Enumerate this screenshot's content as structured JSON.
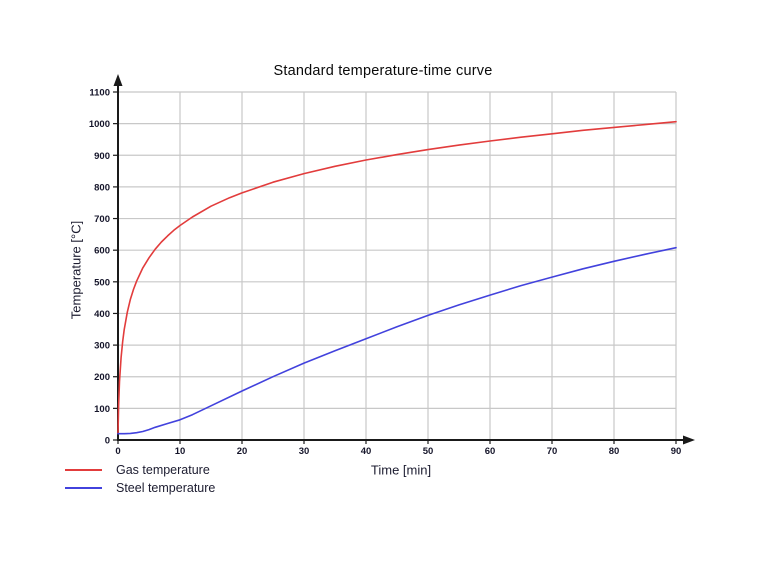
{
  "page": {
    "background": "#ffffff"
  },
  "colors": {
    "grid": "#c8c8c8",
    "axis": "#1a1a1a",
    "tick_text": "#15152a",
    "gas_line": "#e23c3c",
    "steel_line": "#4242dd"
  },
  "chart_data": {
    "type": "line",
    "title": "Standard temperature-time curve",
    "xlabel": "Time [min]",
    "ylabel": "Temperature [°C]",
    "xlim": [
      0,
      90
    ],
    "ylim": [
      0,
      1100
    ],
    "x_ticks": [
      0,
      10,
      20,
      30,
      40,
      50,
      60,
      70,
      80,
      90
    ],
    "y_ticks": [
      0,
      100,
      200,
      300,
      400,
      500,
      600,
      700,
      800,
      900,
      1000,
      1100
    ],
    "grid": true,
    "legend_position": "bottom-left",
    "series": [
      {
        "name": "Gas temperature",
        "color": "#e23c3c",
        "points": [
          [
            0,
            20
          ],
          [
            0.1,
            108
          ],
          [
            0.25,
            185
          ],
          [
            0.5,
            261
          ],
          [
            0.75,
            312
          ],
          [
            1,
            349
          ],
          [
            1.5,
            404
          ],
          [
            2,
            445
          ],
          [
            2.5,
            476
          ],
          [
            3,
            502
          ],
          [
            4,
            544
          ],
          [
            5,
            576
          ],
          [
            6,
            603
          ],
          [
            7,
            626
          ],
          [
            8,
            645
          ],
          [
            9,
            663
          ],
          [
            10,
            678
          ],
          [
            12,
            705
          ],
          [
            15,
            739
          ],
          [
            18,
            766
          ],
          [
            20,
            781
          ],
          [
            25,
            815
          ],
          [
            30,
            842
          ],
          [
            35,
            865
          ],
          [
            40,
            885
          ],
          [
            45,
            902
          ],
          [
            50,
            918
          ],
          [
            55,
            932
          ],
          [
            60,
            945
          ],
          [
            65,
            957
          ],
          [
            70,
            968
          ],
          [
            75,
            979
          ],
          [
            80,
            988
          ],
          [
            85,
            997
          ],
          [
            90,
            1006
          ]
        ]
      },
      {
        "name": "Steel temperature",
        "color": "#4242dd",
        "points": [
          [
            0,
            20
          ],
          [
            1,
            20
          ],
          [
            2,
            21
          ],
          [
            3,
            23
          ],
          [
            4,
            27
          ],
          [
            5,
            33
          ],
          [
            6,
            40
          ],
          [
            8,
            52
          ],
          [
            10,
            64
          ],
          [
            12,
            80
          ],
          [
            15,
            108
          ],
          [
            20,
            155
          ],
          [
            25,
            200
          ],
          [
            30,
            243
          ],
          [
            35,
            282
          ],
          [
            40,
            320
          ],
          [
            45,
            358
          ],
          [
            50,
            394
          ],
          [
            55,
            427
          ],
          [
            60,
            458
          ],
          [
            65,
            488
          ],
          [
            70,
            515
          ],
          [
            75,
            541
          ],
          [
            80,
            565
          ],
          [
            85,
            587
          ],
          [
            90,
            608
          ]
        ]
      }
    ]
  }
}
